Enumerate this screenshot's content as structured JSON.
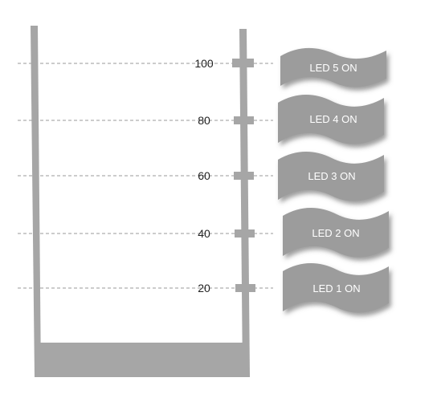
{
  "colors": {
    "container": "#a6a6a6",
    "flag": "#9c9c9c",
    "flag_shadow": "#5e5e5e",
    "dashed_line": "#999999",
    "label_text": "#222222",
    "flag_text": "#ffffff"
  },
  "levels": [
    {
      "value": "100",
      "label": "LED 5 ON"
    },
    {
      "value": "80",
      "label": "LED 4 ON"
    },
    {
      "value": "60",
      "label": "LED 3 ON"
    },
    {
      "value": "40",
      "label": "LED 2 ON"
    },
    {
      "value": "20",
      "label": "LED 1 ON"
    }
  ]
}
